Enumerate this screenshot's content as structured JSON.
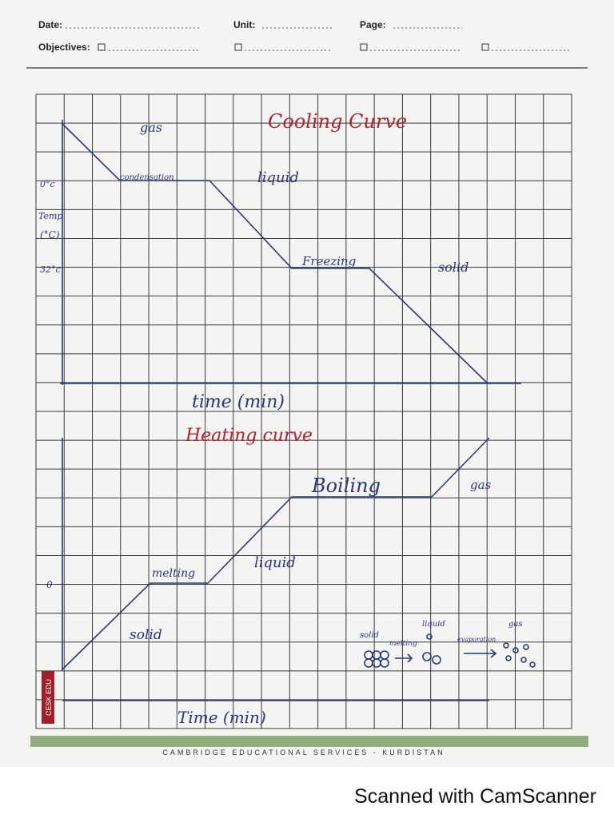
{
  "header": {
    "date": "Date:",
    "unit": "Unit:",
    "page": "Page:",
    "objectives": "Objectives:"
  },
  "cooling_curve": {
    "title": "Cooling Curve",
    "y_axis": [
      "Temp",
      "(°C)"
    ],
    "y_ticks": [
      "0°c",
      "32°c"
    ],
    "labels": [
      "gas",
      "condensation",
      "liquid",
      "Freezing",
      "solid"
    ],
    "x_axis": "time (min)"
  },
  "heating_curve": {
    "title": "Heating curve",
    "y_tick": "0",
    "labels": [
      "melting",
      "liquid",
      "Boiling",
      "gas",
      "solid"
    ],
    "x_axis": "Time (min)"
  },
  "particle_diagram": {
    "labels": [
      "solid",
      "melting",
      "liquid",
      "evaporation",
      "gas"
    ]
  },
  "side_tag": "CESK EDU",
  "footer": "CAMBRIDGE EDUCATIONAL SERVICES - KURDISTAN",
  "watermark": "Scanned with CamScanner"
}
